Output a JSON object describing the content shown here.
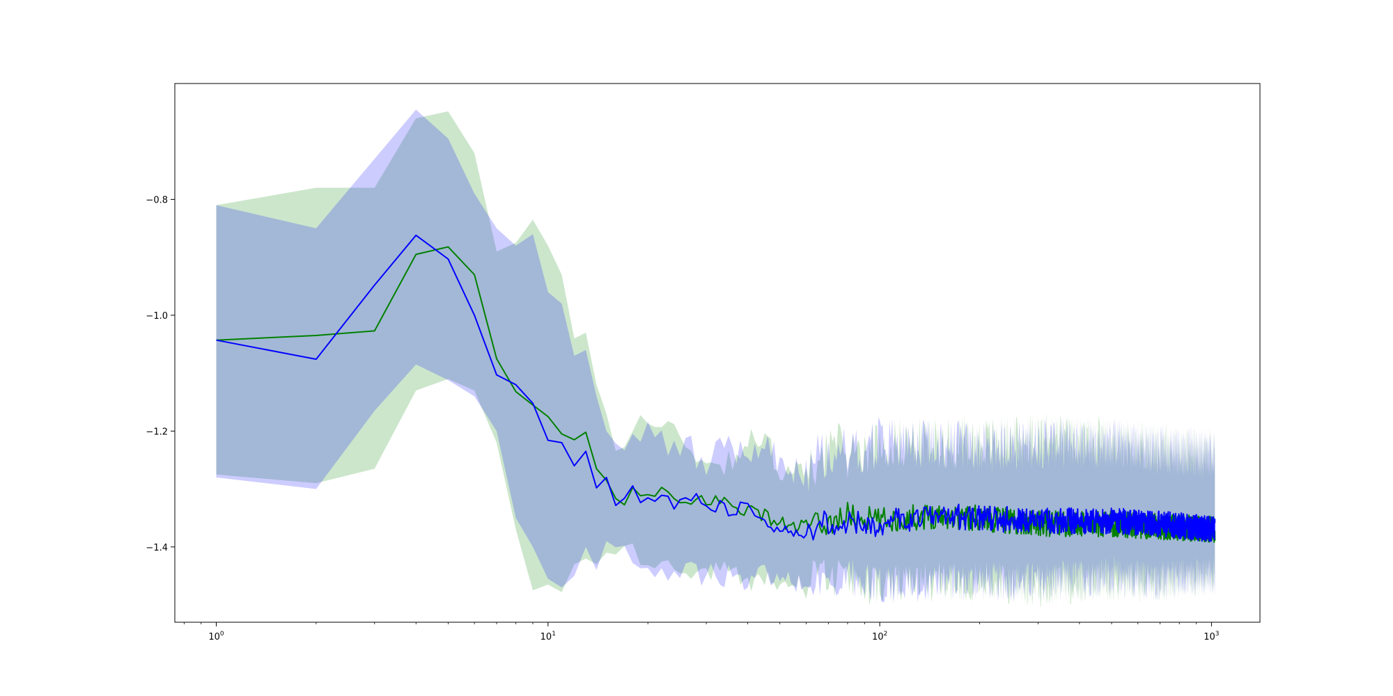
{
  "chart_data": {
    "type": "line",
    "title": "",
    "xlabel": "",
    "ylabel": "",
    "xscale": "log",
    "xlim": [
      0.75,
      1400
    ],
    "ylim": [
      -1.53,
      -0.6
    ],
    "grid": false,
    "legend": "none",
    "x_ticks": [
      {
        "value": 1,
        "base": "10",
        "exp": "0"
      },
      {
        "value": 10,
        "base": "10",
        "exp": "1"
      },
      {
        "value": 100,
        "base": "10",
        "exp": "2"
      },
      {
        "value": 1000,
        "base": "10",
        "exp": "3"
      }
    ],
    "y_ticks": [
      {
        "value": -0.8,
        "label": "−0.8"
      },
      {
        "value": -1.0,
        "label": "−1.0"
      },
      {
        "value": -1.2,
        "label": "−1.2"
      },
      {
        "value": -1.4,
        "label": "−1.4"
      }
    ],
    "series": [
      {
        "color": "#008000",
        "band_color": "#008000",
        "mean": [
          [
            1,
            -1.043
          ],
          [
            2,
            -1.035
          ],
          [
            3,
            -1.027
          ],
          [
            4,
            -0.895
          ],
          [
            5,
            -0.882
          ],
          [
            6,
            -0.93
          ],
          [
            7,
            -1.075
          ],
          [
            8,
            -1.132
          ],
          [
            9,
            -1.155
          ],
          [
            10,
            -1.175
          ],
          [
            11,
            -1.205
          ],
          [
            12,
            -1.215
          ],
          [
            13,
            -1.202
          ],
          [
            14,
            -1.265
          ],
          [
            15,
            -1.285
          ],
          [
            16,
            -1.318
          ],
          [
            18,
            -1.31
          ],
          [
            20,
            -1.315
          ],
          [
            22,
            -1.3
          ],
          [
            25,
            -1.335
          ],
          [
            28,
            -1.32
          ],
          [
            32,
            -1.318
          ],
          [
            36,
            -1.328
          ],
          [
            40,
            -1.335
          ],
          [
            45,
            -1.345
          ],
          [
            50,
            -1.36
          ],
          [
            55,
            -1.365
          ],
          [
            60,
            -1.365
          ],
          [
            70,
            -1.36
          ],
          [
            80,
            -1.345
          ],
          [
            100,
            -1.355
          ],
          [
            150,
            -1.345
          ],
          [
            200,
            -1.35
          ],
          [
            300,
            -1.36
          ],
          [
            500,
            -1.36
          ],
          [
            700,
            -1.365
          ],
          [
            1024,
            -1.37
          ]
        ],
        "upper": [
          [
            1,
            -0.81
          ],
          [
            2,
            -0.78
          ],
          [
            3,
            -0.78
          ],
          [
            4,
            -0.66
          ],
          [
            5,
            -0.648
          ],
          [
            6,
            -0.72
          ],
          [
            7,
            -0.89
          ],
          [
            8,
            -0.875
          ],
          [
            9,
            -0.835
          ],
          [
            10,
            -0.88
          ],
          [
            11,
            -0.93
          ],
          [
            12,
            -1.04
          ],
          [
            13,
            -1.03
          ],
          [
            14,
            -1.12
          ],
          [
            15,
            -1.17
          ],
          [
            16,
            -1.23
          ],
          [
            18,
            -1.18
          ],
          [
            20,
            -1.19
          ],
          [
            25,
            -1.2
          ],
          [
            30,
            -1.26
          ],
          [
            35,
            -1.25
          ],
          [
            40,
            -1.22
          ],
          [
            45,
            -1.22
          ],
          [
            50,
            -1.26
          ],
          [
            60,
            -1.28
          ],
          [
            70,
            -1.22
          ],
          [
            80,
            -1.24
          ],
          [
            100,
            -1.22
          ],
          [
            150,
            -1.22
          ],
          [
            200,
            -1.22
          ],
          [
            300,
            -1.21
          ],
          [
            500,
            -1.22
          ],
          [
            700,
            -1.23
          ],
          [
            1024,
            -1.24
          ]
        ],
        "lower": [
          [
            1,
            -1.275
          ],
          [
            2,
            -1.29
          ],
          [
            3,
            -1.265
          ],
          [
            4,
            -1.13
          ],
          [
            5,
            -1.11
          ],
          [
            6,
            -1.13
          ],
          [
            7,
            -1.22
          ],
          [
            8,
            -1.37
          ],
          [
            9,
            -1.475
          ],
          [
            10,
            -1.465
          ],
          [
            11,
            -1.478
          ],
          [
            12,
            -1.43
          ],
          [
            13,
            -1.42
          ],
          [
            14,
            -1.43
          ],
          [
            15,
            -1.41
          ],
          [
            16,
            -1.4
          ],
          [
            18,
            -1.41
          ],
          [
            20,
            -1.42
          ],
          [
            25,
            -1.44
          ],
          [
            30,
            -1.45
          ],
          [
            35,
            -1.44
          ],
          [
            40,
            -1.46
          ],
          [
            45,
            -1.45
          ],
          [
            50,
            -1.47
          ],
          [
            60,
            -1.46
          ],
          [
            70,
            -1.45
          ],
          [
            80,
            -1.46
          ],
          [
            100,
            -1.47
          ],
          [
            150,
            -1.46
          ],
          [
            200,
            -1.46
          ],
          [
            300,
            -1.47
          ],
          [
            500,
            -1.46
          ],
          [
            700,
            -1.46
          ],
          [
            1024,
            -1.45
          ]
        ]
      },
      {
        "color": "#0000ff",
        "band_color": "#0000ff",
        "mean": [
          [
            1,
            -1.043
          ],
          [
            2,
            -1.076
          ],
          [
            3,
            -0.948
          ],
          [
            4,
            -0.862
          ],
          [
            5,
            -0.903
          ],
          [
            6,
            -1.0
          ],
          [
            7,
            -1.103
          ],
          [
            8,
            -1.12
          ],
          [
            9,
            -1.152
          ],
          [
            10,
            -1.216
          ],
          [
            11,
            -1.22
          ],
          [
            12,
            -1.26
          ],
          [
            13,
            -1.235
          ],
          [
            14,
            -1.298
          ],
          [
            15,
            -1.28
          ],
          [
            16,
            -1.322
          ],
          [
            18,
            -1.305
          ],
          [
            20,
            -1.318
          ],
          [
            22,
            -1.31
          ],
          [
            25,
            -1.328
          ],
          [
            28,
            -1.318
          ],
          [
            32,
            -1.33
          ],
          [
            36,
            -1.34
          ],
          [
            40,
            -1.33
          ],
          [
            45,
            -1.355
          ],
          [
            50,
            -1.37
          ],
          [
            55,
            -1.375
          ],
          [
            60,
            -1.38
          ],
          [
            70,
            -1.355
          ],
          [
            80,
            -1.36
          ],
          [
            100,
            -1.36
          ],
          [
            150,
            -1.345
          ],
          [
            200,
            -1.35
          ],
          [
            300,
            -1.355
          ],
          [
            500,
            -1.355
          ],
          [
            700,
            -1.36
          ],
          [
            1024,
            -1.37
          ]
        ],
        "upper": [
          [
            1,
            -0.81
          ],
          [
            2,
            -0.85
          ],
          [
            3,
            -0.73
          ],
          [
            4,
            -0.645
          ],
          [
            5,
            -0.695
          ],
          [
            6,
            -0.79
          ],
          [
            7,
            -0.85
          ],
          [
            8,
            -0.88
          ],
          [
            9,
            -0.86
          ],
          [
            10,
            -0.96
          ],
          [
            11,
            -0.98
          ],
          [
            12,
            -1.07
          ],
          [
            13,
            -1.06
          ],
          [
            14,
            -1.14
          ],
          [
            15,
            -1.2
          ],
          [
            16,
            -1.23
          ],
          [
            18,
            -1.195
          ],
          [
            20,
            -1.21
          ],
          [
            25,
            -1.22
          ],
          [
            30,
            -1.25
          ],
          [
            35,
            -1.23
          ],
          [
            40,
            -1.24
          ],
          [
            45,
            -1.22
          ],
          [
            50,
            -1.26
          ],
          [
            60,
            -1.27
          ],
          [
            70,
            -1.23
          ],
          [
            80,
            -1.24
          ],
          [
            100,
            -1.22
          ],
          [
            150,
            -1.22
          ],
          [
            200,
            -1.23
          ],
          [
            300,
            -1.22
          ],
          [
            500,
            -1.22
          ],
          [
            700,
            -1.23
          ],
          [
            1024,
            -1.24
          ]
        ],
        "lower": [
          [
            1,
            -1.28
          ],
          [
            2,
            -1.3
          ],
          [
            3,
            -1.165
          ],
          [
            4,
            -1.085
          ],
          [
            5,
            -1.112
          ],
          [
            6,
            -1.14
          ],
          [
            7,
            -1.2
          ],
          [
            8,
            -1.35
          ],
          [
            9,
            -1.4
          ],
          [
            10,
            -1.455
          ],
          [
            11,
            -1.47
          ],
          [
            12,
            -1.45
          ],
          [
            13,
            -1.4
          ],
          [
            14,
            -1.44
          ],
          [
            15,
            -1.39
          ],
          [
            16,
            -1.4
          ],
          [
            18,
            -1.43
          ],
          [
            20,
            -1.44
          ],
          [
            25,
            -1.44
          ],
          [
            30,
            -1.45
          ],
          [
            35,
            -1.45
          ],
          [
            40,
            -1.46
          ],
          [
            45,
            -1.45
          ],
          [
            50,
            -1.46
          ],
          [
            60,
            -1.46
          ],
          [
            70,
            -1.45
          ],
          [
            80,
            -1.45
          ],
          [
            100,
            -1.47
          ],
          [
            150,
            -1.46
          ],
          [
            200,
            -1.46
          ],
          [
            300,
            -1.46
          ],
          [
            500,
            -1.45
          ],
          [
            700,
            -1.46
          ],
          [
            1024,
            -1.45
          ]
        ]
      }
    ]
  }
}
